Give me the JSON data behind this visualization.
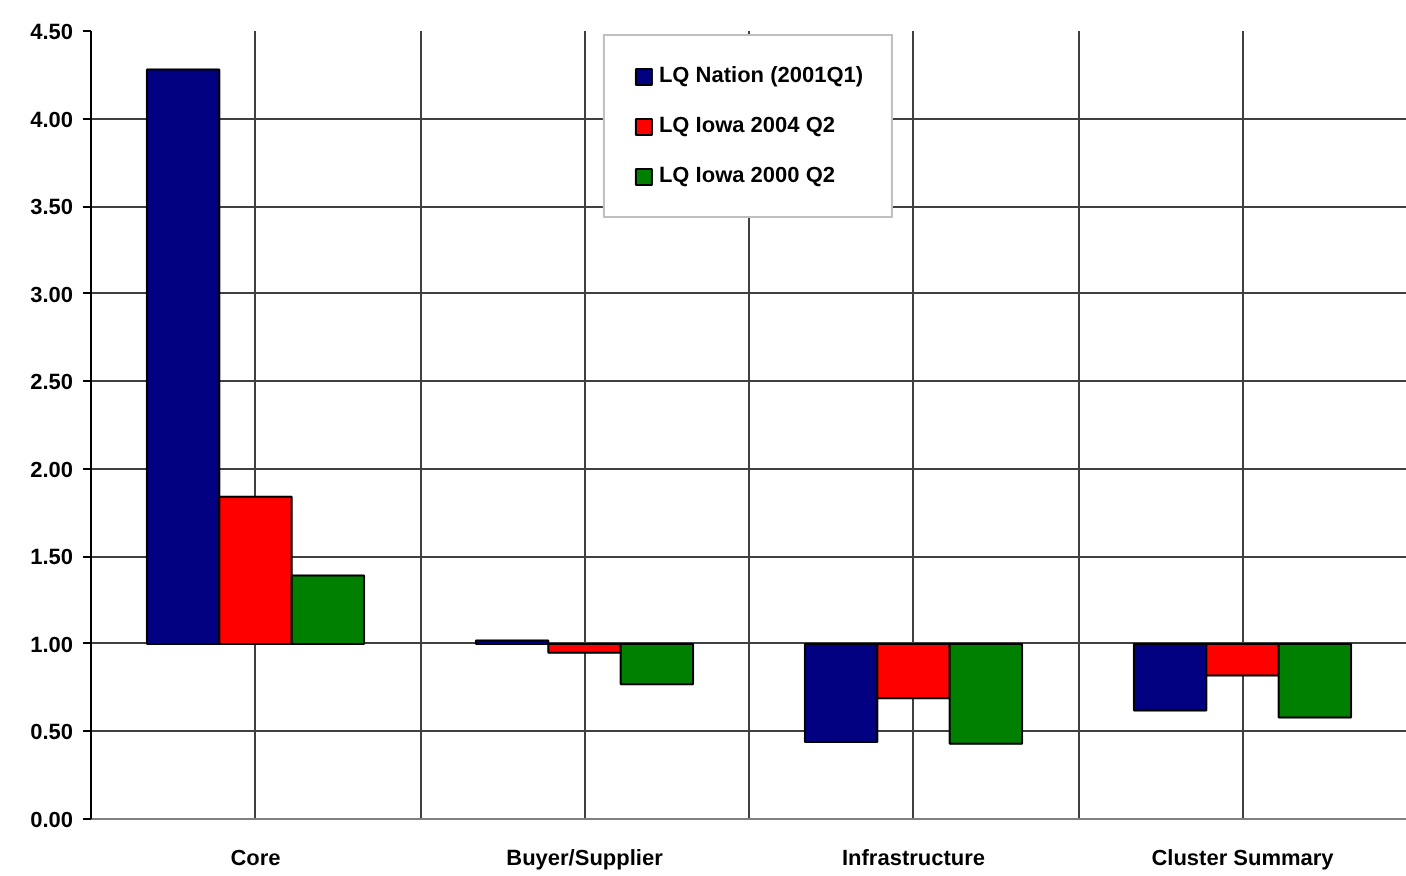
{
  "chart_data": {
    "type": "bar",
    "categories": [
      "Core",
      "Buyer/Supplier",
      "Infrastructure",
      "Cluster Summary"
    ],
    "series": [
      {
        "name": "LQ Nation (2001Q1)",
        "color": "#000080",
        "values": [
          3.28,
          0.02,
          -0.56,
          -0.38
        ],
        "base": [
          1,
          1,
          1,
          1
        ]
      },
      {
        "name": "LQ Iowa 2004 Q2",
        "color": "#ff0000",
        "values": [
          0.84,
          -0.05,
          -0.31,
          -0.18
        ],
        "base": [
          1,
          1,
          1,
          1
        ]
      },
      {
        "name": "LQ Iowa 2000 Q2",
        "color": "#008000",
        "values": [
          0.39,
          -0.23,
          -0.57,
          -0.42
        ],
        "base": [
          1,
          1,
          1,
          1
        ]
      }
    ],
    "ylim": [
      0,
      4.5
    ],
    "yticks": [
      {
        "value": 0,
        "label": "0.00"
      },
      {
        "value": 0.5,
        "label": "0.50"
      },
      {
        "value": 1,
        "label": "1.00"
      },
      {
        "value": 1.5,
        "label": "1.50"
      },
      {
        "value": 2,
        "label": "2.00"
      },
      {
        "value": 2.5,
        "label": "2.50"
      },
      {
        "value": 3,
        "label": "3.00"
      },
      {
        "value": 3.5,
        "label": "3.50"
      },
      {
        "value": 4,
        "label": "4.00"
      },
      {
        "value": 4.5,
        "label": "4.50"
      }
    ],
    "grid": true,
    "legend": "top"
  }
}
